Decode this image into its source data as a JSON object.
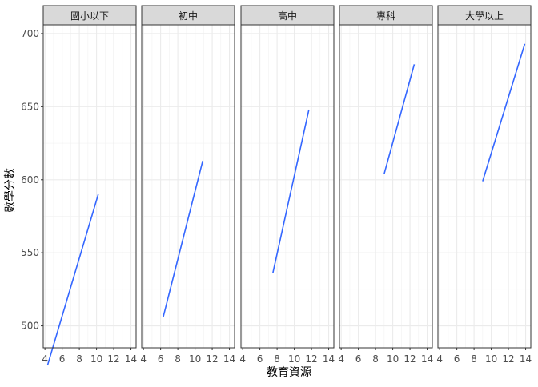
{
  "chart_data": {
    "type": "line",
    "xlabel": "教育資源",
    "ylabel": "數學分數",
    "xlim": [
      3.8,
      14.6
    ],
    "ylim": [
      485,
      706
    ],
    "x_ticks": [
      4,
      6,
      8,
      10,
      12,
      14
    ],
    "y_ticks": [
      500,
      550,
      600,
      650,
      700
    ],
    "grid": true,
    "line_color": "#3366ff",
    "panels": [
      {
        "label": "國小以下",
        "x": [
          4.3,
          10.2
        ],
        "y": [
          473,
          590
        ]
      },
      {
        "label": "初中",
        "x": [
          6.3,
          10.9
        ],
        "y": [
          506,
          613
        ]
      },
      {
        "label": "高中",
        "x": [
          7.5,
          11.7
        ],
        "y": [
          536,
          648
        ]
      },
      {
        "label": "專科",
        "x": [
          9.0,
          12.5
        ],
        "y": [
          604,
          679
        ]
      },
      {
        "label": "大學以上",
        "x": [
          9.0,
          13.9
        ],
        "y": [
          599,
          693
        ]
      }
    ]
  }
}
